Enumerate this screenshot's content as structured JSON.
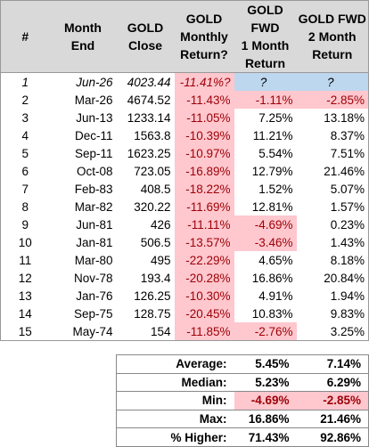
{
  "table": {
    "headers": [
      "#",
      "Month\nEnd",
      "GOLD\nClose",
      "GOLD\nMonthly\nReturn?",
      "GOLD FWD\n1 Month\nReturn",
      "GOLD FWD\n2 Month\nReturn"
    ],
    "rows": [
      [
        "1",
        "Jun-26",
        "4023.44",
        "-11.41%?",
        "?",
        "?"
      ],
      [
        "2",
        "Mar-26",
        "4674.52",
        "-11.43%",
        "-1.11%",
        "-2.85%"
      ],
      [
        "3",
        "Jun-13",
        "1233.14",
        "-11.05%",
        "7.25%",
        "13.18%"
      ],
      [
        "4",
        "Dec-11",
        "1563.8",
        "-10.39%",
        "11.21%",
        "8.37%"
      ],
      [
        "5",
        "Sep-11",
        "1623.25",
        "-10.97%",
        "5.54%",
        "7.51%"
      ],
      [
        "6",
        "Oct-08",
        "723.05",
        "-16.89%",
        "12.79%",
        "21.46%"
      ],
      [
        "7",
        "Feb-83",
        "408.5",
        "-18.22%",
        "1.52%",
        "5.07%"
      ],
      [
        "8",
        "Mar-82",
        "320.22",
        "-11.69%",
        "12.81%",
        "1.57%"
      ],
      [
        "9",
        "Jun-81",
        "426",
        "-11.11%",
        "-4.69%",
        "0.23%"
      ],
      [
        "10",
        "Jan-81",
        "506.5",
        "-13.57%",
        "-3.46%",
        "1.43%"
      ],
      [
        "11",
        "Mar-80",
        "495",
        "-22.29%",
        "4.65%",
        "8.18%"
      ],
      [
        "12",
        "Nov-78",
        "193.4",
        "-20.28%",
        "16.86%",
        "20.84%"
      ],
      [
        "13",
        "Jan-76",
        "126.25",
        "-10.30%",
        "4.91%",
        "1.94%"
      ],
      [
        "14",
        "Sep-75",
        "128.75",
        "-20.45%",
        "10.83%",
        "9.83%"
      ],
      [
        "15",
        "May-74",
        "154",
        "-11.85%",
        "-2.76%",
        "3.25%"
      ]
    ]
  },
  "summary": {
    "rows": [
      [
        "Average:",
        "5.45%",
        "7.14%"
      ],
      [
        "Median:",
        "5.23%",
        "6.29%"
      ],
      [
        "Min:",
        "-4.69%",
        "-2.85%"
      ],
      [
        "Max:",
        "16.86%",
        "21.46%"
      ],
      [
        "% Higher:",
        "71.43%",
        "92.86%"
      ]
    ]
  }
}
